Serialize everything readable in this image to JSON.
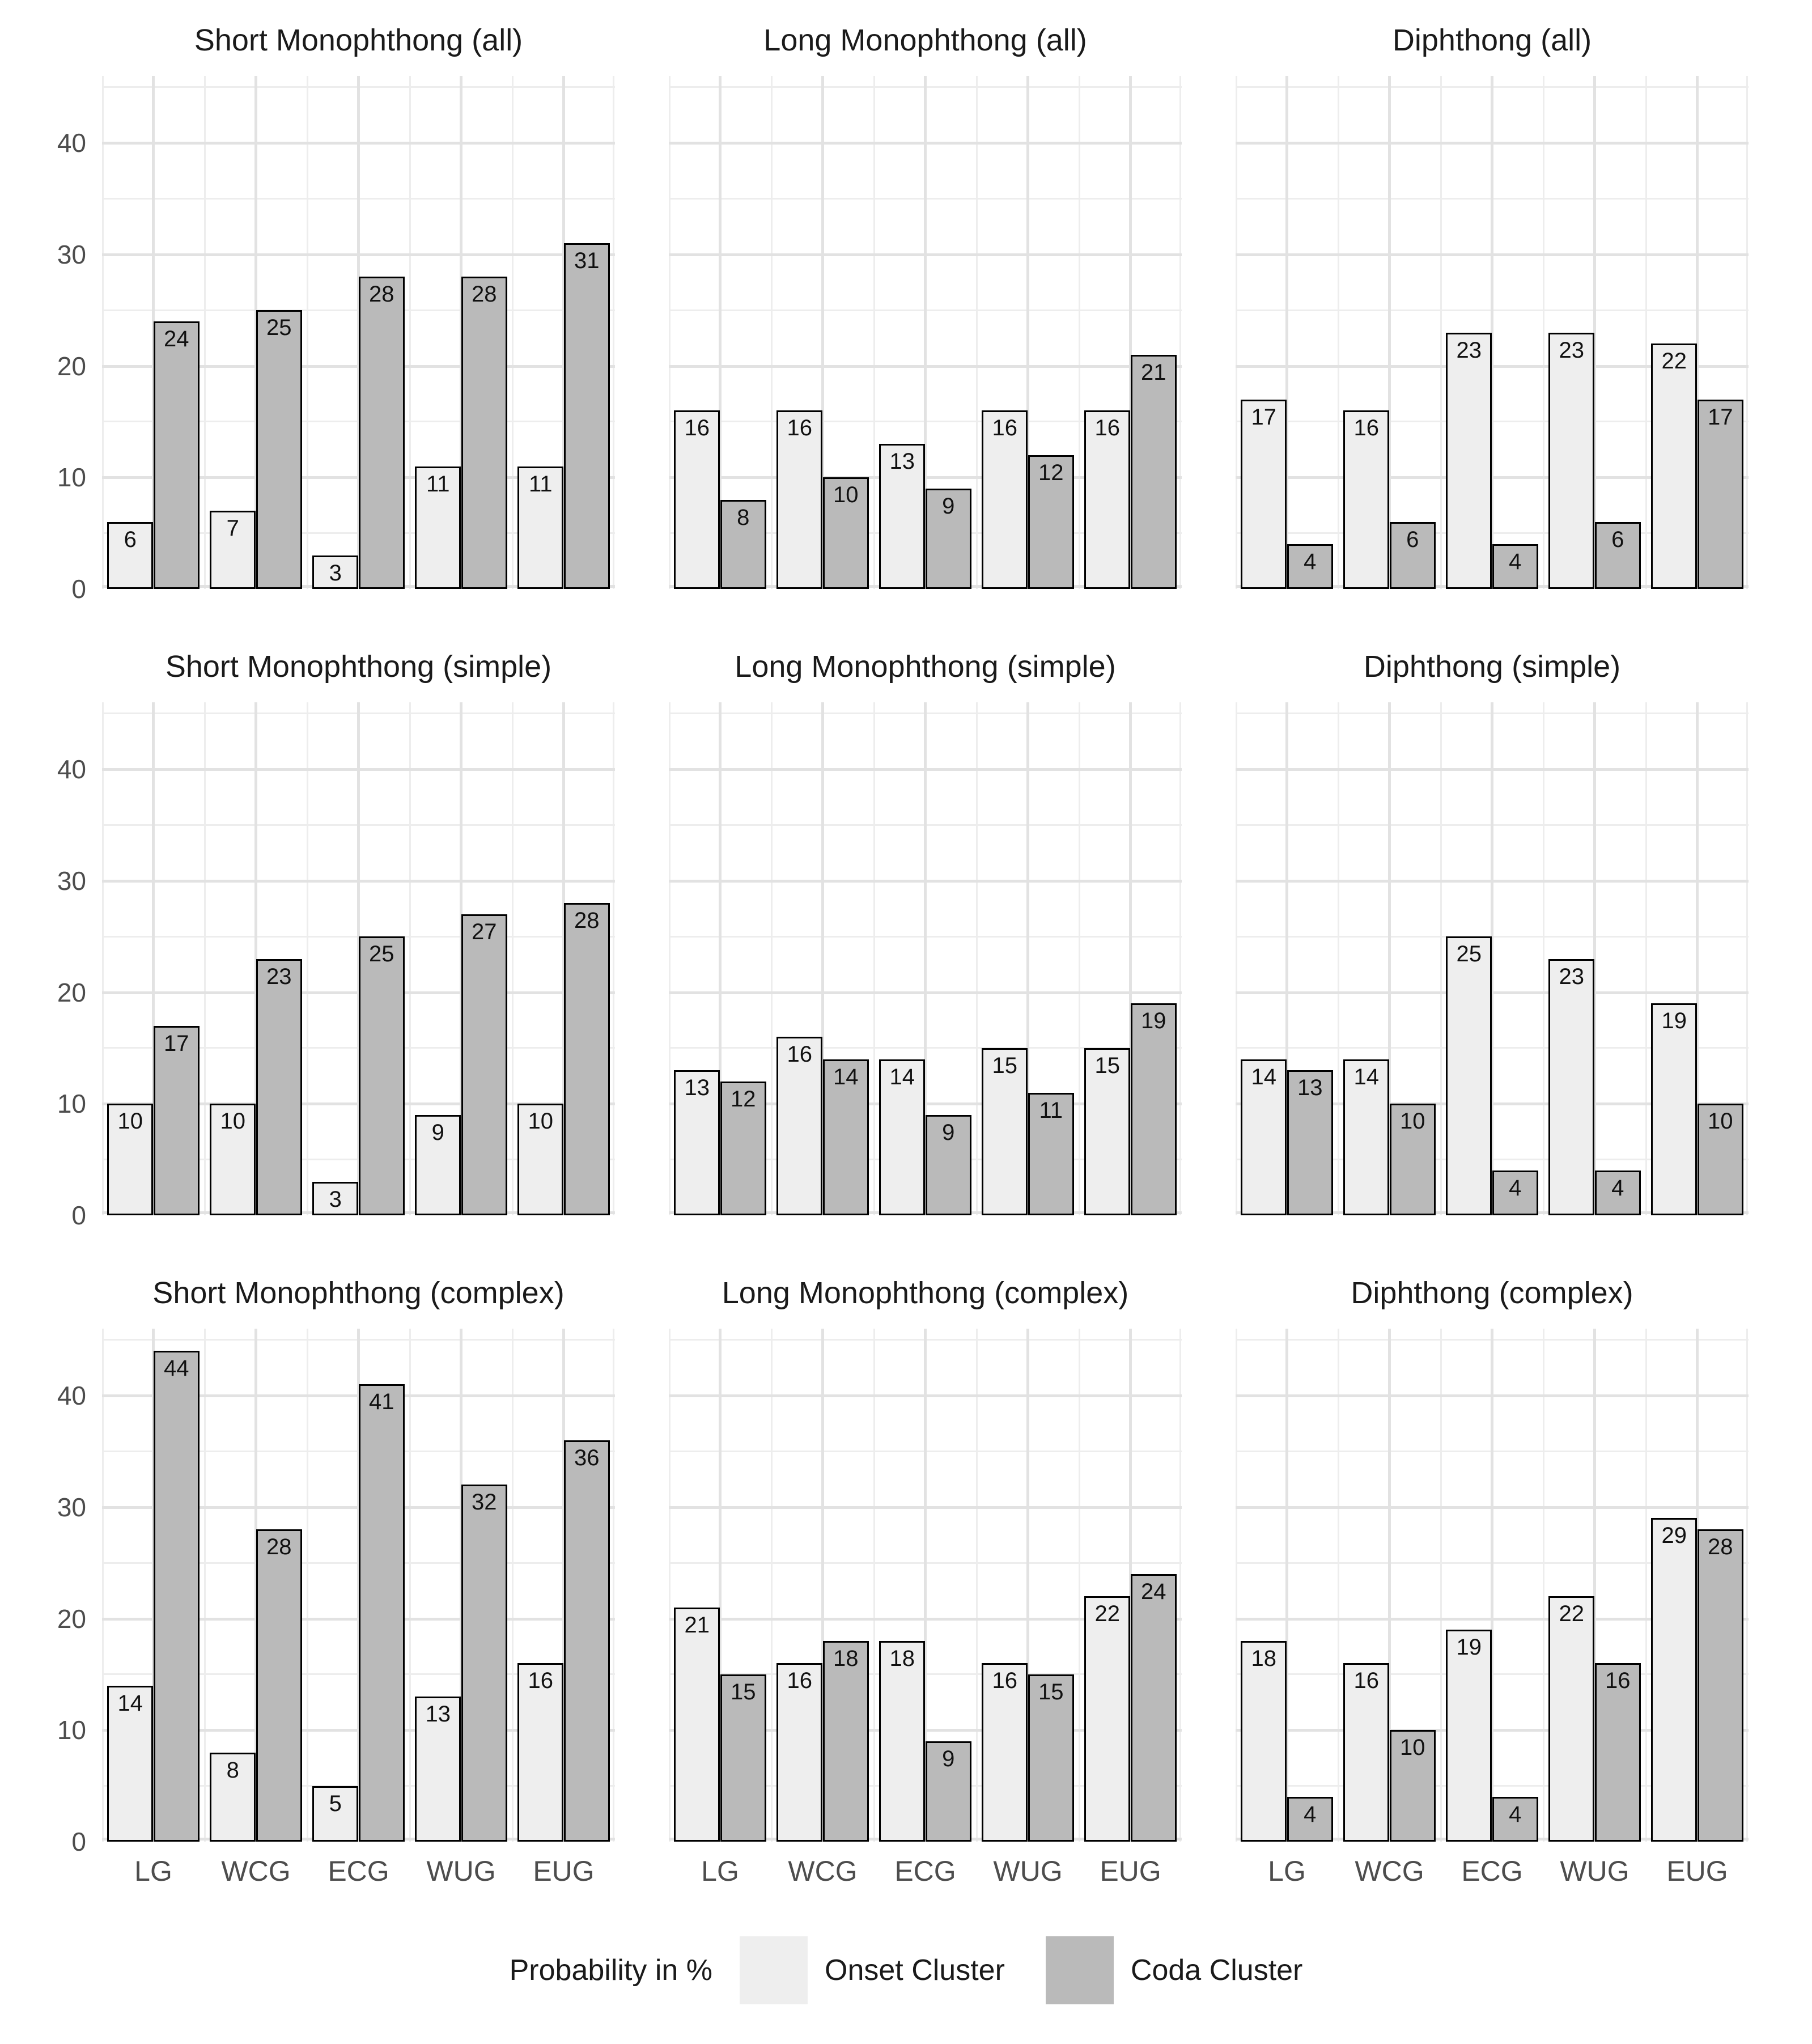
{
  "legend": {
    "title": "Probability in %",
    "items": [
      {
        "label": "Onset Cluster",
        "color": "#eeeeee"
      },
      {
        "label": "Coda Cluster",
        "color": "#bababa"
      }
    ],
    "position": "bottom"
  },
  "axes": {
    "categories": [
      "LG",
      "WCG",
      "ECG",
      "WUG",
      "EUG"
    ],
    "y_major_ticks": [
      0,
      10,
      20,
      30,
      40
    ],
    "y_minor_ticks": [
      5,
      15,
      25,
      35,
      45
    ],
    "ylim": [
      0,
      46
    ],
    "grid": true
  },
  "chart_data": [
    {
      "type": "bar",
      "title": "Short Monophthong (all)",
      "categories": [
        "LG",
        "WCG",
        "ECG",
        "WUG",
        "EUG"
      ],
      "series": [
        {
          "name": "Onset Cluster",
          "values": [
            6,
            7,
            3,
            11,
            11
          ]
        },
        {
          "name": "Coda Cluster",
          "values": [
            24,
            25,
            28,
            28,
            31
          ]
        }
      ],
      "ylabel": "Probability in %",
      "ylim": [
        0,
        46
      ],
      "grid": true,
      "legend_position": "bottom"
    },
    {
      "type": "bar",
      "title": "Long Monophthong (all)",
      "categories": [
        "LG",
        "WCG",
        "ECG",
        "WUG",
        "EUG"
      ],
      "series": [
        {
          "name": "Onset Cluster",
          "values": [
            16,
            16,
            13,
            16,
            16
          ]
        },
        {
          "name": "Coda Cluster",
          "values": [
            8,
            10,
            9,
            12,
            21
          ]
        }
      ],
      "ylabel": "Probability in %",
      "ylim": [
        0,
        46
      ],
      "grid": true,
      "legend_position": "bottom"
    },
    {
      "type": "bar",
      "title": "Diphthong (all)",
      "categories": [
        "LG",
        "WCG",
        "ECG",
        "WUG",
        "EUG"
      ],
      "series": [
        {
          "name": "Onset Cluster",
          "values": [
            17,
            16,
            23,
            23,
            22
          ]
        },
        {
          "name": "Coda Cluster",
          "values": [
            4,
            6,
            4,
            6,
            17
          ]
        }
      ],
      "ylabel": "Probability in %",
      "ylim": [
        0,
        46
      ],
      "grid": true,
      "legend_position": "bottom"
    },
    {
      "type": "bar",
      "title": "Short Monophthong (simple)",
      "categories": [
        "LG",
        "WCG",
        "ECG",
        "WUG",
        "EUG"
      ],
      "series": [
        {
          "name": "Onset Cluster",
          "values": [
            10,
            10,
            3,
            9,
            10
          ]
        },
        {
          "name": "Coda Cluster",
          "values": [
            17,
            23,
            25,
            27,
            28
          ]
        }
      ],
      "ylabel": "Probability in %",
      "ylim": [
        0,
        46
      ],
      "grid": true,
      "legend_position": "bottom"
    },
    {
      "type": "bar",
      "title": "Long Monophthong (simple)",
      "categories": [
        "LG",
        "WCG",
        "ECG",
        "WUG",
        "EUG"
      ],
      "series": [
        {
          "name": "Onset Cluster",
          "values": [
            13,
            16,
            14,
            15,
            15
          ]
        },
        {
          "name": "Coda Cluster",
          "values": [
            12,
            14,
            9,
            11,
            19
          ]
        }
      ],
      "ylabel": "Probability in %",
      "ylim": [
        0,
        46
      ],
      "grid": true,
      "legend_position": "bottom"
    },
    {
      "type": "bar",
      "title": "Diphthong (simple)",
      "categories": [
        "LG",
        "WCG",
        "ECG",
        "WUG",
        "EUG"
      ],
      "series": [
        {
          "name": "Onset Cluster",
          "values": [
            14,
            14,
            25,
            23,
            19
          ]
        },
        {
          "name": "Coda Cluster",
          "values": [
            13,
            10,
            4,
            4,
            10
          ]
        }
      ],
      "ylabel": "Probability in %",
      "ylim": [
        0,
        46
      ],
      "grid": true,
      "legend_position": "bottom"
    },
    {
      "type": "bar",
      "title": "Short Monophthong (complex)",
      "categories": [
        "LG",
        "WCG",
        "ECG",
        "WUG",
        "EUG"
      ],
      "series": [
        {
          "name": "Onset Cluster",
          "values": [
            14,
            8,
            5,
            13,
            16
          ]
        },
        {
          "name": "Coda Cluster",
          "values": [
            44,
            28,
            41,
            32,
            36
          ]
        }
      ],
      "ylabel": "Probability in %",
      "ylim": [
        0,
        46
      ],
      "grid": true,
      "legend_position": "bottom"
    },
    {
      "type": "bar",
      "title": "Long Monophthong (complex)",
      "categories": [
        "LG",
        "WCG",
        "ECG",
        "WUG",
        "EUG"
      ],
      "series": [
        {
          "name": "Onset Cluster",
          "values": [
            21,
            16,
            18,
            16,
            22
          ]
        },
        {
          "name": "Coda Cluster",
          "values": [
            15,
            18,
            9,
            15,
            24
          ]
        }
      ],
      "ylabel": "Probability in %",
      "ylim": [
        0,
        46
      ],
      "grid": true,
      "legend_position": "bottom"
    },
    {
      "type": "bar",
      "title": "Diphthong (complex)",
      "categories": [
        "LG",
        "WCG",
        "ECG",
        "WUG",
        "EUG"
      ],
      "series": [
        {
          "name": "Onset Cluster",
          "values": [
            18,
            16,
            19,
            22,
            29
          ]
        },
        {
          "name": "Coda Cluster",
          "values": [
            4,
            10,
            4,
            16,
            28
          ]
        }
      ],
      "ylabel": "Probability in %",
      "ylim": [
        0,
        46
      ],
      "grid": true,
      "legend_position": "bottom"
    }
  ],
  "style": {
    "bar_border_color": "#000000",
    "grid_major_color": "#e2e2e2",
    "grid_minor_color": "#ededed",
    "axis_text_color": "#4d4d4d",
    "background": "#ffffff"
  }
}
